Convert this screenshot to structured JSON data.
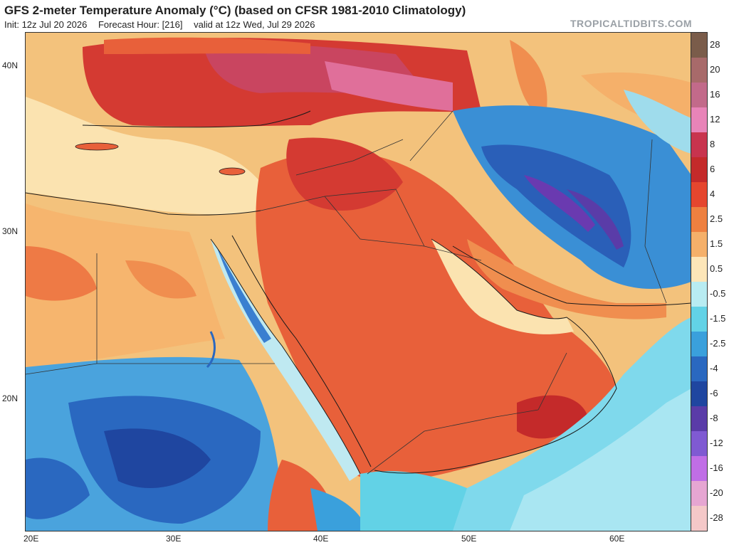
{
  "header": {
    "title": "GFS 2-meter Temperature Anomaly (°C) (based on CFSR 1981-2010 Climatology)",
    "init": "Init: 12z Jul 20 2026",
    "forecast_hour": "Forecast Hour: [216]",
    "valid": "valid at 12z Wed, Jul 29 2026",
    "brand": "TROPICALTIDBITS.COM"
  },
  "map": {
    "lat_labels": [
      "40N",
      "30N",
      "20N"
    ],
    "lon_labels": [
      "20E",
      "30E",
      "40E",
      "50E",
      "60E"
    ]
  },
  "colorbar": {
    "labels": [
      "28",
      "20",
      "16",
      "12",
      "8",
      "6",
      "4",
      "2.5",
      "1.5",
      "0.5",
      "-0.5",
      "-1.5",
      "-2.5",
      "-4",
      "-6",
      "-8",
      "-12",
      "-16",
      "-20",
      "-28"
    ],
    "colors": [
      "#7a5c4a",
      "#a86a6a",
      "#c26a8a",
      "#e884b8",
      "#c8344e",
      "#c42a2a",
      "#e5462e",
      "#ee8040",
      "#f5b06a",
      "#fde6b8",
      "#b8ecf2",
      "#62d2e6",
      "#3aa0dc",
      "#2a68c0",
      "#1f46a0",
      "#5a3ca8",
      "#7f5ad2",
      "#c06ee6",
      "#e6a6d2",
      "#f4c8c8"
    ]
  }
}
